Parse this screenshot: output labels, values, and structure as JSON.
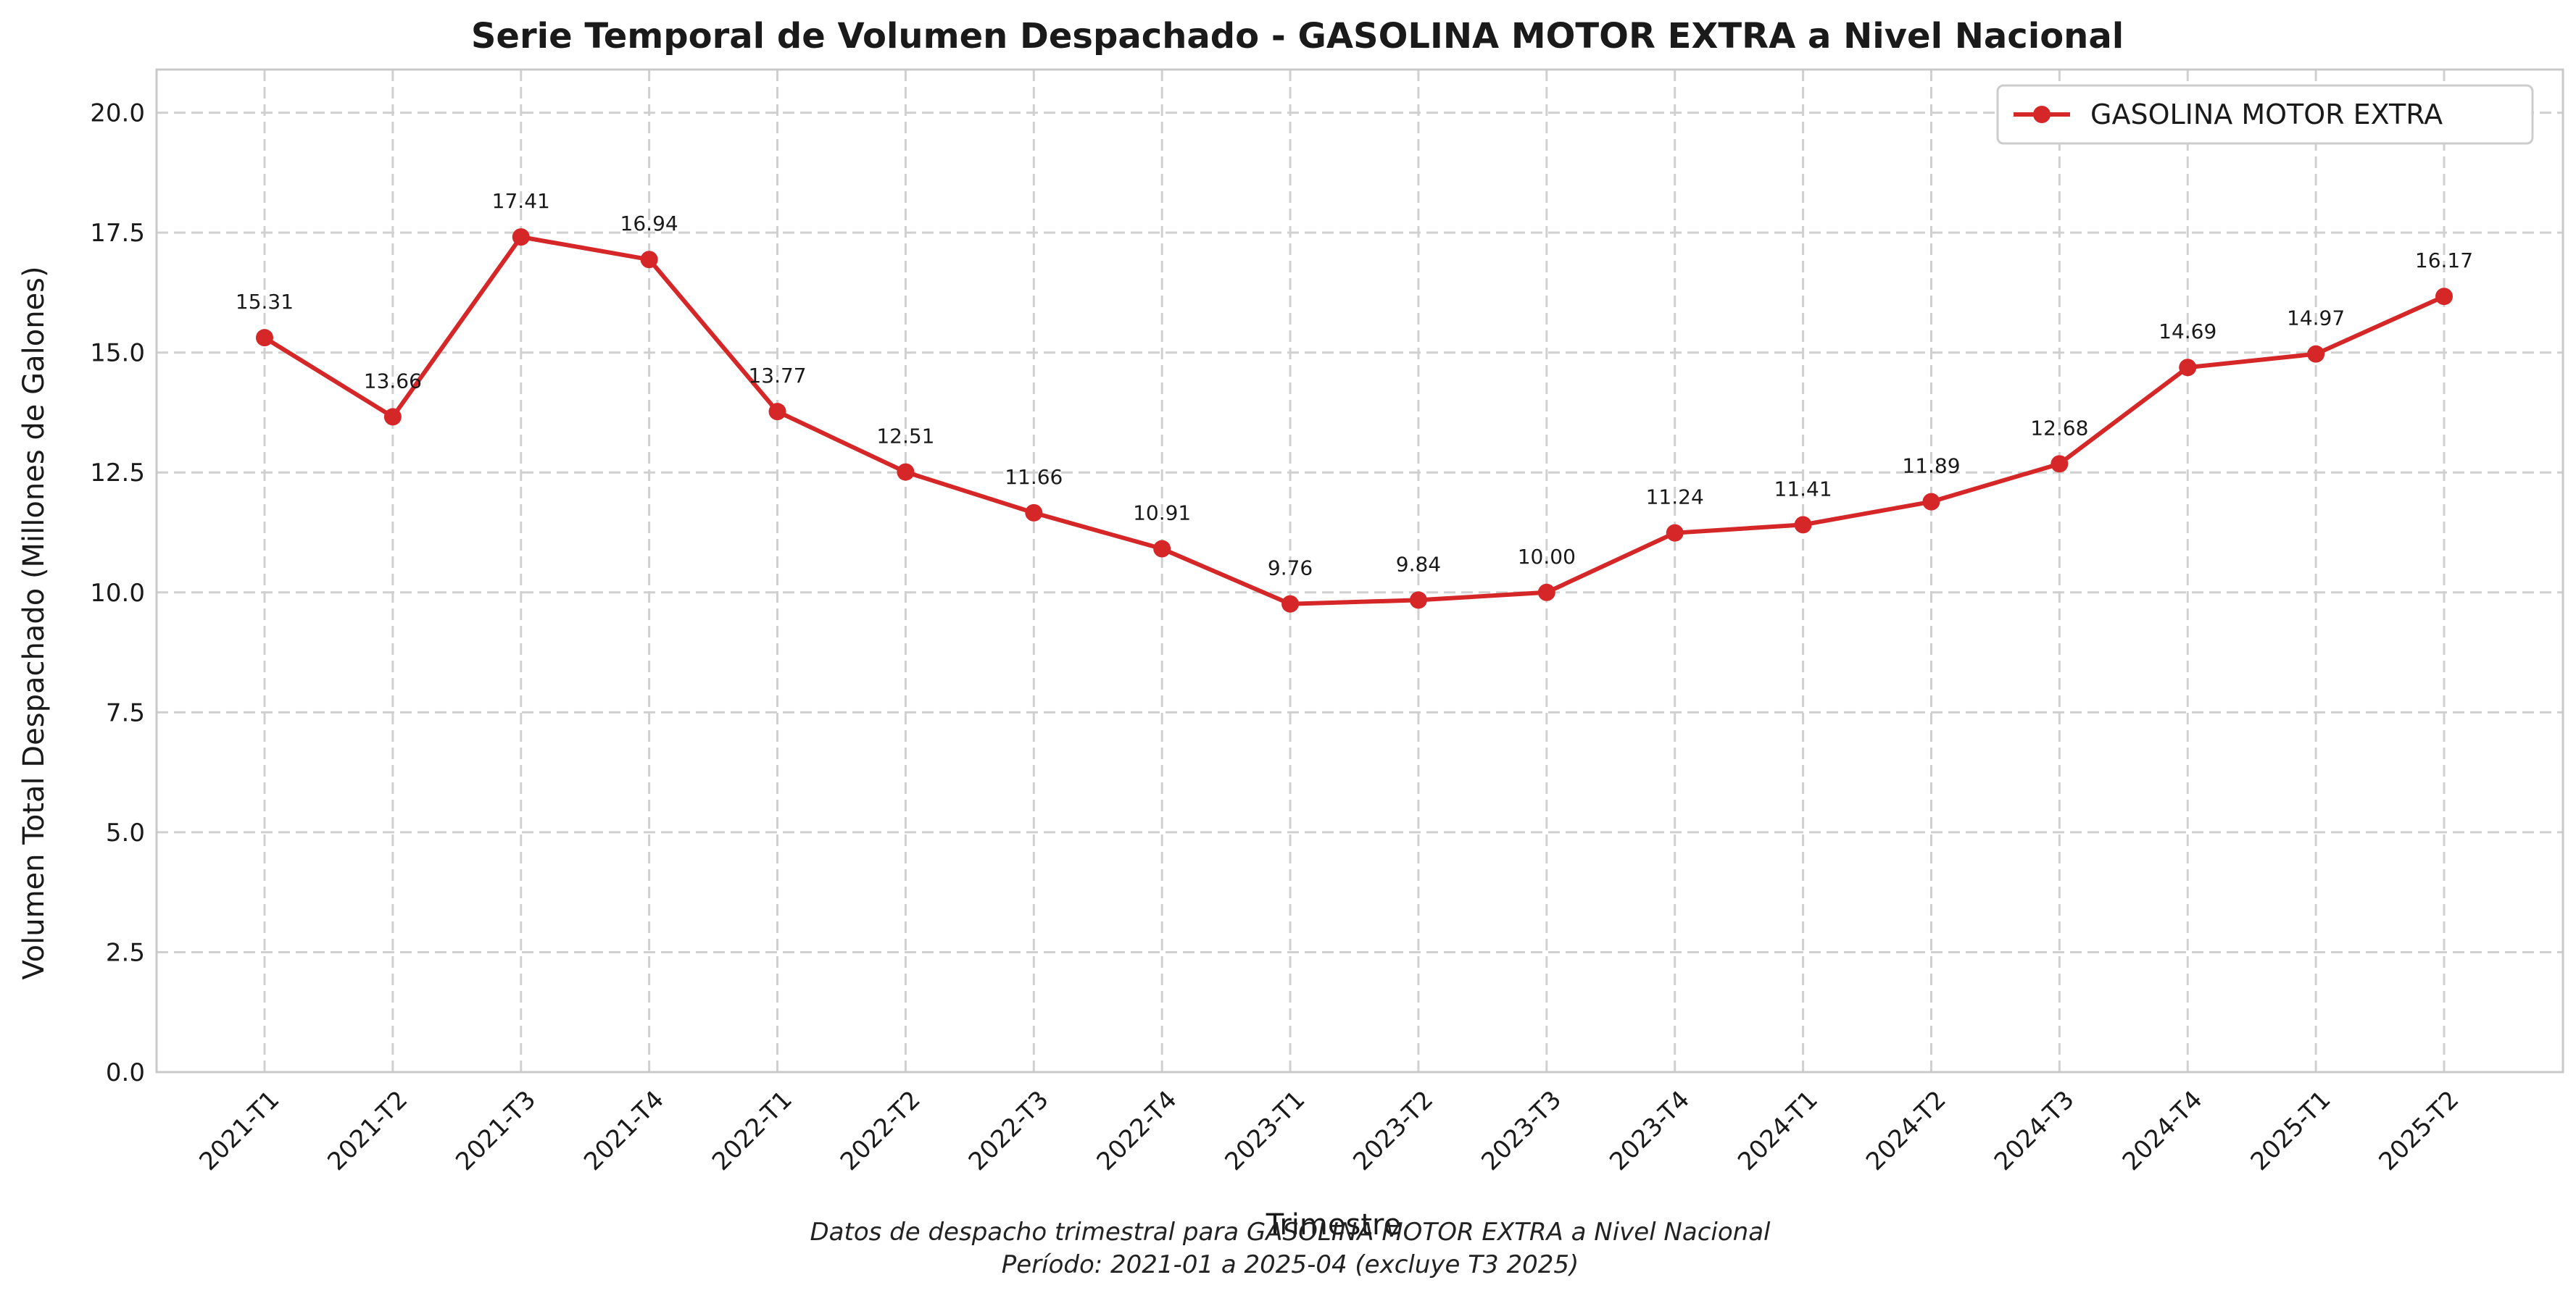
{
  "chart_data": {
    "type": "line",
    "title": "Serie Temporal de Volumen Despachado - GASOLINA MOTOR EXTRA a Nivel Nacional",
    "xlabel": "Trimestre",
    "ylabel": "Volumen Total Despachado (Millones de Galones)",
    "ylim": [
      0,
      20.9
    ],
    "yticks": [
      "0.0",
      "2.5",
      "5.0",
      "7.5",
      "10.0",
      "12.5",
      "15.0",
      "17.5",
      "20.0"
    ],
    "categories": [
      "2021-T1",
      "2021-T2",
      "2021-T3",
      "2021-T4",
      "2022-T1",
      "2022-T2",
      "2022-T3",
      "2022-T4",
      "2023-T1",
      "2023-T2",
      "2023-T3",
      "2023-T4",
      "2024-T1",
      "2024-T2",
      "2024-T3",
      "2024-T4",
      "2025-T1",
      "2025-T2"
    ],
    "series": [
      {
        "name": "GASOLINA MOTOR EXTRA",
        "color": "#d62728",
        "values": [
          15.31,
          13.66,
          17.41,
          16.94,
          13.77,
          12.51,
          11.66,
          10.91,
          9.76,
          9.84,
          10.0,
          11.24,
          11.41,
          11.89,
          12.68,
          14.69,
          14.97,
          16.17
        ],
        "labels": [
          "15.31",
          "13.66",
          "17.41",
          "16.94",
          "13.77",
          "12.51",
          "11.66",
          "10.91",
          "9.76",
          "9.84",
          "10.00",
          "11.24",
          "11.41",
          "11.89",
          "12.68",
          "14.69",
          "14.97",
          "16.17"
        ]
      }
    ],
    "grid": true,
    "legend_position": "top-right",
    "caption_lines": [
      "Datos de despacho trimestral para GASOLINA MOTOR EXTRA a Nivel Nacional",
      "Período: 2021-01 a 2025-04 (excluye T3 2025)"
    ]
  }
}
